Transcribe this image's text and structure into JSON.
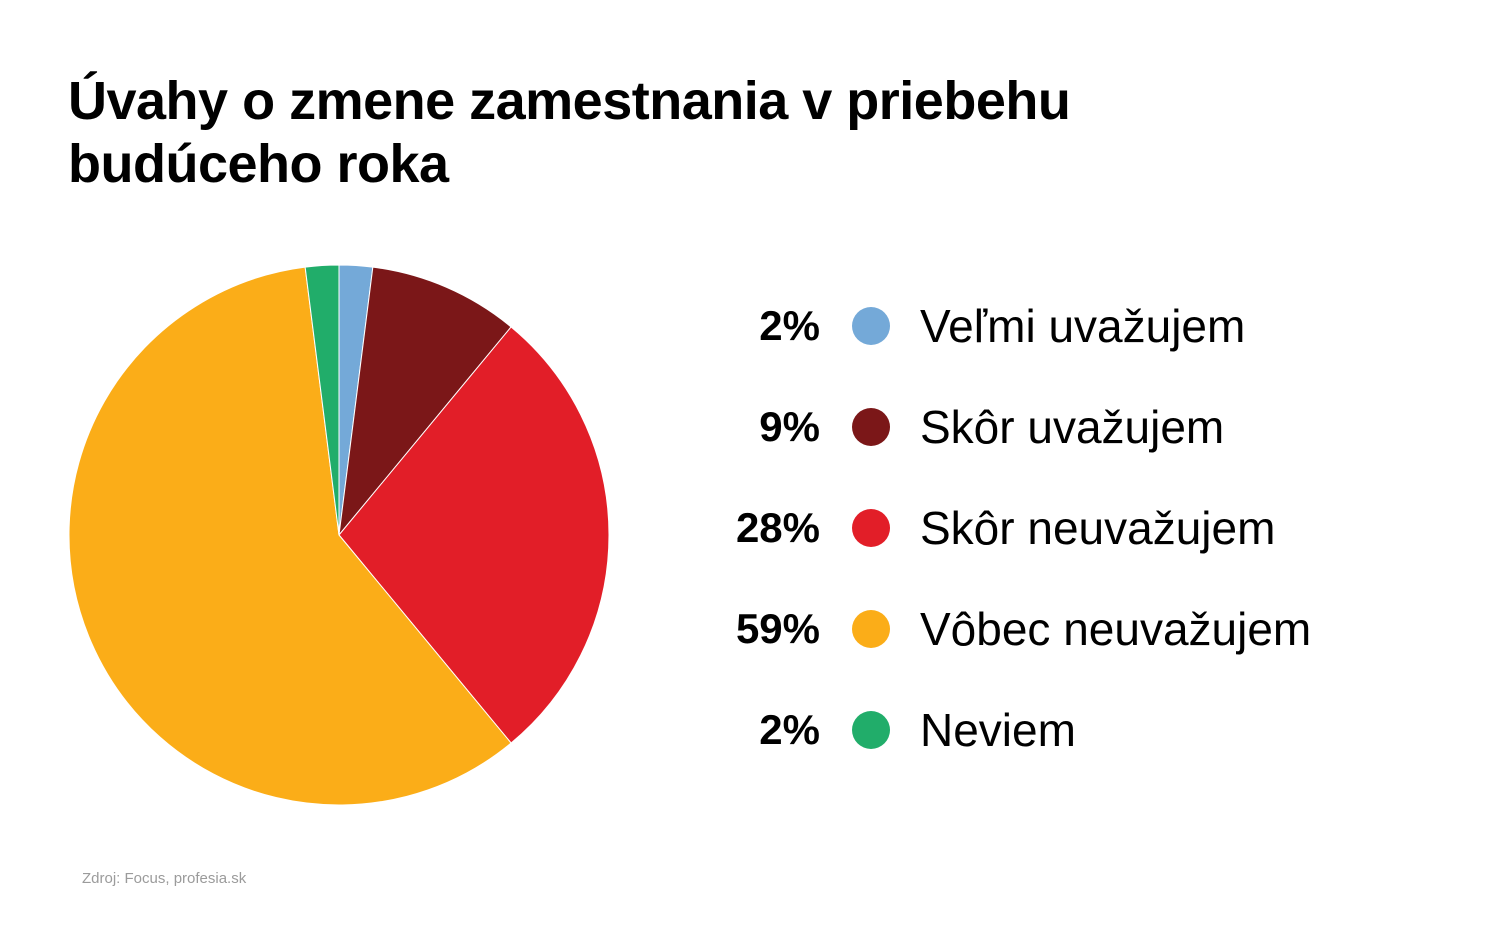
{
  "chart_data": {
    "type": "pie",
    "title": "Úvahy o zmene zamestnania v priebehu budúceho roka",
    "categories": [
      "Veľmi uvažujem",
      "Skôr uvažujem",
      "Skôr neuvažujem",
      "Vôbec neuvažujem",
      "Neviem"
    ],
    "values": [
      2,
      9,
      28,
      59,
      2
    ],
    "value_labels": [
      "2%",
      "9%",
      "28%",
      "59%",
      "2%"
    ],
    "colors": [
      "#74a9d8",
      "#7b1718",
      "#e21e28",
      "#fbad18",
      "#21ad6a"
    ],
    "legend_position": "right",
    "source": "Zdroj: Focus, profesia.sk"
  }
}
